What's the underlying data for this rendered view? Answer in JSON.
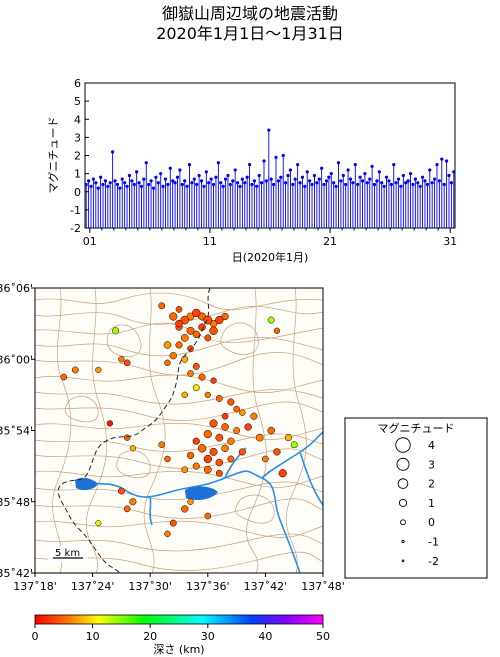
{
  "title": {
    "line1": "御嶽山周辺域の地震活動",
    "line2": "2020年1月1日～1月31日"
  },
  "chart_data": [
    {
      "type": "bar",
      "subtype": "magnitude-time stem plot",
      "ylabel": "マグニチュード",
      "xlabel": "日(2020年1月)",
      "xlim": [
        0.6,
        31.4
      ],
      "ylim": [
        -2,
        6
      ],
      "y_ticks": [
        -2,
        -1,
        0,
        1,
        2,
        3,
        4,
        5,
        6
      ],
      "x_tick_labels": [
        "01",
        "11",
        "21",
        "31"
      ],
      "x_tick_values": [
        1,
        11,
        21,
        31
      ],
      "series": [
        {
          "color": "#0000ff",
          "events": [
            [
              0.7,
              0.4
            ],
            [
              0.9,
              0.6
            ],
            [
              1.1,
              0.3
            ],
            [
              1.3,
              0.7
            ],
            [
              1.5,
              0.5
            ],
            [
              1.7,
              0.2
            ],
            [
              1.9,
              0.8
            ],
            [
              2.1,
              0.4
            ],
            [
              2.3,
              0.6
            ],
            [
              2.5,
              0.3
            ],
            [
              2.7,
              0.5
            ],
            [
              2.9,
              2.2
            ],
            [
              3.1,
              0.6
            ],
            [
              3.3,
              0.4
            ],
            [
              3.5,
              0.2
            ],
            [
              3.7,
              0.7
            ],
            [
              3.9,
              0.5
            ],
            [
              4.1,
              0.3
            ],
            [
              4.3,
              0.9
            ],
            [
              4.5,
              0.6
            ],
            [
              4.7,
              0.4
            ],
            [
              4.9,
              1.1
            ],
            [
              5.1,
              0.5
            ],
            [
              5.3,
              0.3
            ],
            [
              5.5,
              0.7
            ],
            [
              5.7,
              1.6
            ],
            [
              5.9,
              0.4
            ],
            [
              6.1,
              0.6
            ],
            [
              6.3,
              0.2
            ],
            [
              6.5,
              0.8
            ],
            [
              6.7,
              0.5
            ],
            [
              6.9,
              1.0
            ],
            [
              7.1,
              0.3
            ],
            [
              7.3,
              0.7
            ],
            [
              7.5,
              0.4
            ],
            [
              7.7,
              1.3
            ],
            [
              7.9,
              0.6
            ],
            [
              8.1,
              0.5
            ],
            [
              8.3,
              0.8
            ],
            [
              8.5,
              1.2
            ],
            [
              8.7,
              0.4
            ],
            [
              8.9,
              0.6
            ],
            [
              9.1,
              0.3
            ],
            [
              9.3,
              1.5
            ],
            [
              9.5,
              0.5
            ],
            [
              9.7,
              0.7
            ],
            [
              9.9,
              0.4
            ],
            [
              10.1,
              0.9
            ],
            [
              10.3,
              0.6
            ],
            [
              10.5,
              0.3
            ],
            [
              10.7,
              1.1
            ],
            [
              10.9,
              0.5
            ],
            [
              11.1,
              0.7
            ],
            [
              11.3,
              0.4
            ],
            [
              11.5,
              0.8
            ],
            [
              11.7,
              1.6
            ],
            [
              11.9,
              0.5
            ],
            [
              12.1,
              0.3
            ],
            [
              12.3,
              0.7
            ],
            [
              12.5,
              0.9
            ],
            [
              12.7,
              0.4
            ],
            [
              12.9,
              0.6
            ],
            [
              13.1,
              1.2
            ],
            [
              13.3,
              0.5
            ],
            [
              13.5,
              0.3
            ],
            [
              13.7,
              0.7
            ],
            [
              13.9,
              0.5
            ],
            [
              14.1,
              0.8
            ],
            [
              14.3,
              1.5
            ],
            [
              14.5,
              0.4
            ],
            [
              14.7,
              0.6
            ],
            [
              14.9,
              0.3
            ],
            [
              15.1,
              0.9
            ],
            [
              15.3,
              0.5
            ],
            [
              15.5,
              1.7
            ],
            [
              15.7,
              0.6
            ],
            [
              15.9,
              3.4
            ],
            [
              16.1,
              0.7
            ],
            [
              16.3,
              0.4
            ],
            [
              16.5,
              1.9
            ],
            [
              16.7,
              0.6
            ],
            [
              16.9,
              0.8
            ],
            [
              17.1,
              2.0
            ],
            [
              17.3,
              0.5
            ],
            [
              17.5,
              0.9
            ],
            [
              17.7,
              1.2
            ],
            [
              17.9,
              0.4
            ],
            [
              18.1,
              0.7
            ],
            [
              18.3,
              1.5
            ],
            [
              18.5,
              0.5
            ],
            [
              18.7,
              0.8
            ],
            [
              18.9,
              0.3
            ],
            [
              19.1,
              1.1
            ],
            [
              19.3,
              0.6
            ],
            [
              19.5,
              0.4
            ],
            [
              19.7,
              0.9
            ],
            [
              19.9,
              0.5
            ],
            [
              20.1,
              0.7
            ],
            [
              20.3,
              1.3
            ],
            [
              20.5,
              0.4
            ],
            [
              20.7,
              0.6
            ],
            [
              20.9,
              0.8
            ],
            [
              21.1,
              1.0
            ],
            [
              21.3,
              0.5
            ],
            [
              21.5,
              0.3
            ],
            [
              21.7,
              1.6
            ],
            [
              21.9,
              0.6
            ],
            [
              22.1,
              0.9
            ],
            [
              22.3,
              0.4
            ],
            [
              22.5,
              1.2
            ],
            [
              22.7,
              0.7
            ],
            [
              22.9,
              0.5
            ],
            [
              23.1,
              1.5
            ],
            [
              23.3,
              0.4
            ],
            [
              23.5,
              0.8
            ],
            [
              23.7,
              0.6
            ],
            [
              23.9,
              1.0
            ],
            [
              24.1,
              0.5
            ],
            [
              24.3,
              0.7
            ],
            [
              24.5,
              1.4
            ],
            [
              24.7,
              0.4
            ],
            [
              24.9,
              0.6
            ],
            [
              25.1,
              1.1
            ],
            [
              25.3,
              0.5
            ],
            [
              25.5,
              0.3
            ],
            [
              25.7,
              0.8
            ],
            [
              25.9,
              0.6
            ],
            [
              26.1,
              0.4
            ],
            [
              26.3,
              1.5
            ],
            [
              26.5,
              0.5
            ],
            [
              26.7,
              0.7
            ],
            [
              26.9,
              0.3
            ],
            [
              27.1,
              0.9
            ],
            [
              27.3,
              0.5
            ],
            [
              27.5,
              0.6
            ],
            [
              27.7,
              1.0
            ],
            [
              27.9,
              0.4
            ],
            [
              28.1,
              0.7
            ],
            [
              28.3,
              0.5
            ],
            [
              28.5,
              0.3
            ],
            [
              28.7,
              0.8
            ],
            [
              28.9,
              0.6
            ],
            [
              29.1,
              0.4
            ],
            [
              29.3,
              1.2
            ],
            [
              29.5,
              0.5
            ],
            [
              29.7,
              0.7
            ],
            [
              29.9,
              1.5
            ],
            [
              30.1,
              0.6
            ],
            [
              30.3,
              1.8
            ],
            [
              30.5,
              0.4
            ],
            [
              30.7,
              1.7
            ],
            [
              30.9,
              0.9
            ],
            [
              31.1,
              0.5
            ],
            [
              31.3,
              1.1
            ]
          ]
        }
      ]
    },
    {
      "type": "scatter",
      "subtype": "epicenter map",
      "x_tick_labels": [
        "137˚18'",
        "137˚24'",
        "137˚30'",
        "137˚36'",
        "137˚42'",
        "137˚48'"
      ],
      "y_tick_labels": [
        "36˚06'",
        "36˚00'",
        "35˚54'",
        "35˚48'",
        "35˚42'"
      ],
      "xlim": [
        137.3,
        137.8
      ],
      "ylim": [
        35.7,
        36.1
      ],
      "scale_bar_label": "5 km",
      "colorbar": {
        "label": "深さ (km)",
        "ticks": [
          0,
          10,
          20,
          30,
          40,
          50
        ],
        "range": [
          0,
          50
        ]
      },
      "legend": {
        "title": "マグニチュード",
        "entries": [
          "4",
          "3",
          "2",
          "1",
          "0",
          "-1",
          "-2"
        ],
        "magnitudes": [
          4,
          3,
          2,
          1,
          0,
          -1,
          -2
        ]
      },
      "events": [
        [
          137.54,
          36.06,
          1.5,
          5
        ],
        [
          137.55,
          36.05,
          1.2,
          3
        ],
        [
          137.56,
          36.055,
          1.7,
          4
        ],
        [
          137.57,
          36.06,
          1.3,
          6
        ],
        [
          137.58,
          36.065,
          1.6,
          3
        ],
        [
          137.59,
          36.06,
          1.4,
          5
        ],
        [
          137.6,
          36.055,
          1.8,
          4
        ],
        [
          137.61,
          36.05,
          1.2,
          6
        ],
        [
          137.62,
          36.055,
          1.5,
          3
        ],
        [
          137.63,
          36.06,
          1.1,
          5
        ],
        [
          137.55,
          36.045,
          1.0,
          4
        ],
        [
          137.57,
          36.04,
          1.4,
          5
        ],
        [
          137.59,
          36.045,
          1.2,
          3
        ],
        [
          137.61,
          36.04,
          1.6,
          4
        ],
        [
          137.56,
          36.03,
          1.3,
          6
        ],
        [
          137.58,
          36.035,
          1.1,
          5
        ],
        [
          137.6,
          36.03,
          0.9,
          4
        ],
        [
          137.53,
          36.02,
          1.2,
          7
        ],
        [
          137.55,
          36.02,
          1.0,
          5
        ],
        [
          137.57,
          36.015,
          0.8,
          4
        ],
        [
          137.54,
          36.005,
          1.1,
          6
        ],
        [
          137.56,
          36.0,
          0.9,
          8
        ],
        [
          137.53,
          35.995,
          0.7,
          5
        ],
        [
          137.58,
          35.99,
          0.9,
          4
        ],
        [
          137.57,
          35.98,
          0.8,
          6
        ],
        [
          137.59,
          35.975,
          1.0,
          5
        ],
        [
          137.61,
          35.97,
          0.6,
          3
        ],
        [
          137.58,
          35.96,
          0.9,
          10
        ],
        [
          137.56,
          35.95,
          0.7,
          8
        ],
        [
          137.6,
          35.95,
          0.6,
          6
        ],
        [
          137.62,
          35.945,
          0.9,
          5
        ],
        [
          137.64,
          35.94,
          1.0,
          4
        ],
        [
          137.65,
          35.93,
          0.8,
          5
        ],
        [
          137.66,
          35.925,
          0.7,
          7
        ],
        [
          137.68,
          35.92,
          1.0,
          6
        ],
        [
          137.63,
          35.92,
          0.8,
          3
        ],
        [
          137.61,
          35.91,
          1.4,
          4
        ],
        [
          137.63,
          35.905,
          1.2,
          5
        ],
        [
          137.65,
          35.9,
          0.9,
          6
        ],
        [
          137.67,
          35.905,
          1.1,
          3
        ],
        [
          137.6,
          35.895,
          1.5,
          5
        ],
        [
          137.62,
          35.89,
          1.3,
          4
        ],
        [
          137.64,
          35.885,
          1.1,
          6
        ],
        [
          137.58,
          35.885,
          1.0,
          3
        ],
        [
          137.59,
          35.875,
          1.6,
          5
        ],
        [
          137.61,
          35.87,
          1.4,
          4
        ],
        [
          137.63,
          35.875,
          1.2,
          6
        ],
        [
          137.57,
          35.865,
          1.1,
          5
        ],
        [
          137.6,
          35.86,
          1.5,
          3
        ],
        [
          137.62,
          35.855,
          1.2,
          4
        ],
        [
          137.58,
          35.85,
          1.0,
          6
        ],
        [
          137.6,
          35.845,
          1.3,
          5
        ],
        [
          137.62,
          35.84,
          0.9,
          4
        ],
        [
          137.56,
          35.845,
          0.8,
          7
        ],
        [
          137.64,
          35.86,
          0.9,
          5
        ],
        [
          137.66,
          35.87,
          1.0,
          4
        ],
        [
          137.69,
          35.89,
          1.3,
          6
        ],
        [
          137.71,
          35.9,
          1.2,
          5
        ],
        [
          137.72,
          35.87,
          1.1,
          4
        ],
        [
          137.73,
          35.84,
          1.5,
          3
        ],
        [
          137.75,
          35.88,
          0.9,
          14
        ],
        [
          137.7,
          35.86,
          0.8,
          6
        ],
        [
          137.74,
          35.89,
          1.0,
          8
        ],
        [
          137.44,
          36.04,
          1.0,
          14
        ],
        [
          137.45,
          36.0,
          0.7,
          6
        ],
        [
          137.46,
          35.995,
          0.8,
          4
        ],
        [
          137.37,
          35.985,
          0.9,
          6
        ],
        [
          137.41,
          35.985,
          0.6,
          7
        ],
        [
          137.35,
          35.975,
          0.8,
          5
        ],
        [
          137.52,
          36.075,
          0.9,
          5
        ],
        [
          137.55,
          36.07,
          0.8,
          4
        ],
        [
          137.71,
          36.055,
          0.9,
          14
        ],
        [
          137.72,
          36.04,
          0.6,
          5
        ],
        [
          137.43,
          35.91,
          0.6,
          1
        ],
        [
          137.46,
          35.89,
          0.7,
          5
        ],
        [
          137.47,
          35.875,
          0.6,
          8
        ],
        [
          137.52,
          35.88,
          0.8,
          6
        ],
        [
          137.53,
          35.86,
          0.7,
          5
        ],
        [
          137.45,
          35.815,
          0.9,
          4
        ],
        [
          137.47,
          35.8,
          1.0,
          6
        ],
        [
          137.46,
          35.79,
          0.8,
          5
        ],
        [
          137.41,
          35.77,
          0.5,
          12
        ],
        [
          137.56,
          35.79,
          1.1,
          5
        ],
        [
          137.54,
          35.77,
          0.9,
          4
        ],
        [
          137.53,
          35.755,
          0.7,
          6
        ],
        [
          137.6,
          35.78,
          0.8,
          5
        ],
        [
          137.57,
          35.8,
          0.7,
          7
        ]
      ]
    }
  ]
}
